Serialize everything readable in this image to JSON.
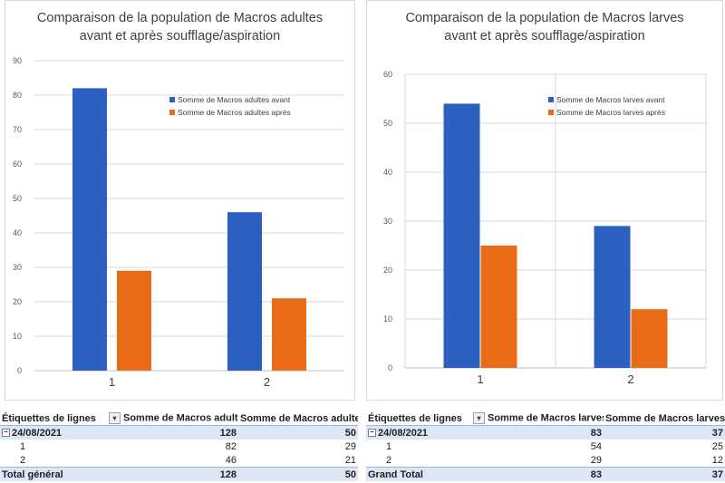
{
  "chart_data": [
    {
      "type": "bar",
      "title": [
        "Comparaison de la population de Macros adultes",
        "avant et après soufflage/aspiration"
      ],
      "categories": [
        "1",
        "2"
      ],
      "series": [
        {
          "name": "Somme de Macros adultes avant",
          "values": [
            82,
            46
          ],
          "color": "#2b5fc1"
        },
        {
          "name": "Somme de Macros adultes après",
          "values": [
            29,
            21
          ],
          "color": "#e96b16"
        }
      ],
      "ylim": [
        0,
        90
      ],
      "yticks": [
        0,
        10,
        20,
        30,
        40,
        50,
        60,
        70,
        80,
        90
      ],
      "grid": "horizontal",
      "legend": "top-right"
    },
    {
      "type": "bar",
      "title": [
        "Comparaison de la population de Macros larves",
        "avant et après soufflage/aspiration"
      ],
      "categories": [
        "1",
        "2"
      ],
      "series": [
        {
          "name": "Somme de Macros larves avant",
          "values": [
            54,
            29
          ],
          "color": "#2b5fc1"
        },
        {
          "name": "Somme de Macros larves après",
          "values": [
            25,
            12
          ],
          "color": "#e96b16"
        }
      ],
      "ylim": [
        0,
        60
      ],
      "yticks": [
        0,
        10,
        20,
        30,
        40,
        50,
        60
      ],
      "grid": "horizontal+vertical",
      "legend": "top-right"
    }
  ],
  "pivot_left": {
    "header": [
      "Étiquettes de lignes",
      "Somme de Macros adultes",
      "Somme de Macros adultes"
    ],
    "group": {
      "label": "24/08/2021",
      "values": [
        "128",
        "50"
      ]
    },
    "rows": [
      {
        "label": "1",
        "values": [
          "82",
          "29"
        ]
      },
      {
        "label": "2",
        "values": [
          "46",
          "21"
        ]
      }
    ],
    "total": {
      "label": "Total général",
      "values": [
        "128",
        "50"
      ]
    }
  },
  "pivot_right": {
    "header": [
      "Étiquettes de lignes",
      "Somme de Macros larves a",
      "Somme de Macros larves a"
    ],
    "group": {
      "label": "24/08/2021",
      "values": [
        "83",
        "37"
      ]
    },
    "rows": [
      {
        "label": "1",
        "values": [
          "54",
          "25"
        ]
      },
      {
        "label": "2",
        "values": [
          "29",
          "12"
        ]
      }
    ],
    "total": {
      "label": "Grand Total",
      "values": [
        "83",
        "37"
      ]
    }
  },
  "icons": {
    "filter": "filter-icon",
    "collapse": "collapse-minus-icon"
  }
}
